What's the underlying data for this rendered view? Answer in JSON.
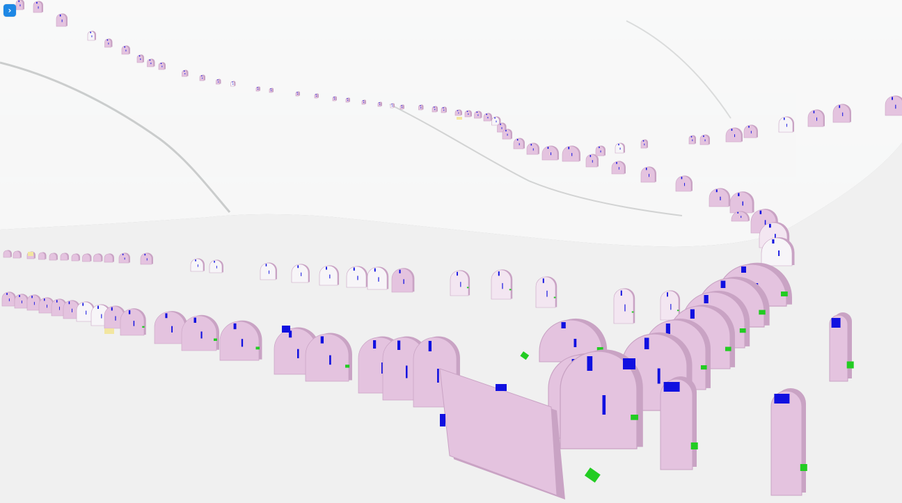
{
  "viewer": {
    "expand_button": {
      "icon": "chevron-right-icon",
      "glyph": "›",
      "color": "#1e88e5"
    },
    "colors": {
      "background": "#f0f0f0",
      "terrain": "#b9bcbc",
      "segment_fill": "#e4c3df",
      "segment_edge": "#c9a3c4",
      "segment_light": "#f3e6f1",
      "segment_white": "#f7f5f8",
      "marker_blue": "#1010e0",
      "marker_green": "#22cc22",
      "marker_yellow": "#f2e6a0"
    }
  }
}
